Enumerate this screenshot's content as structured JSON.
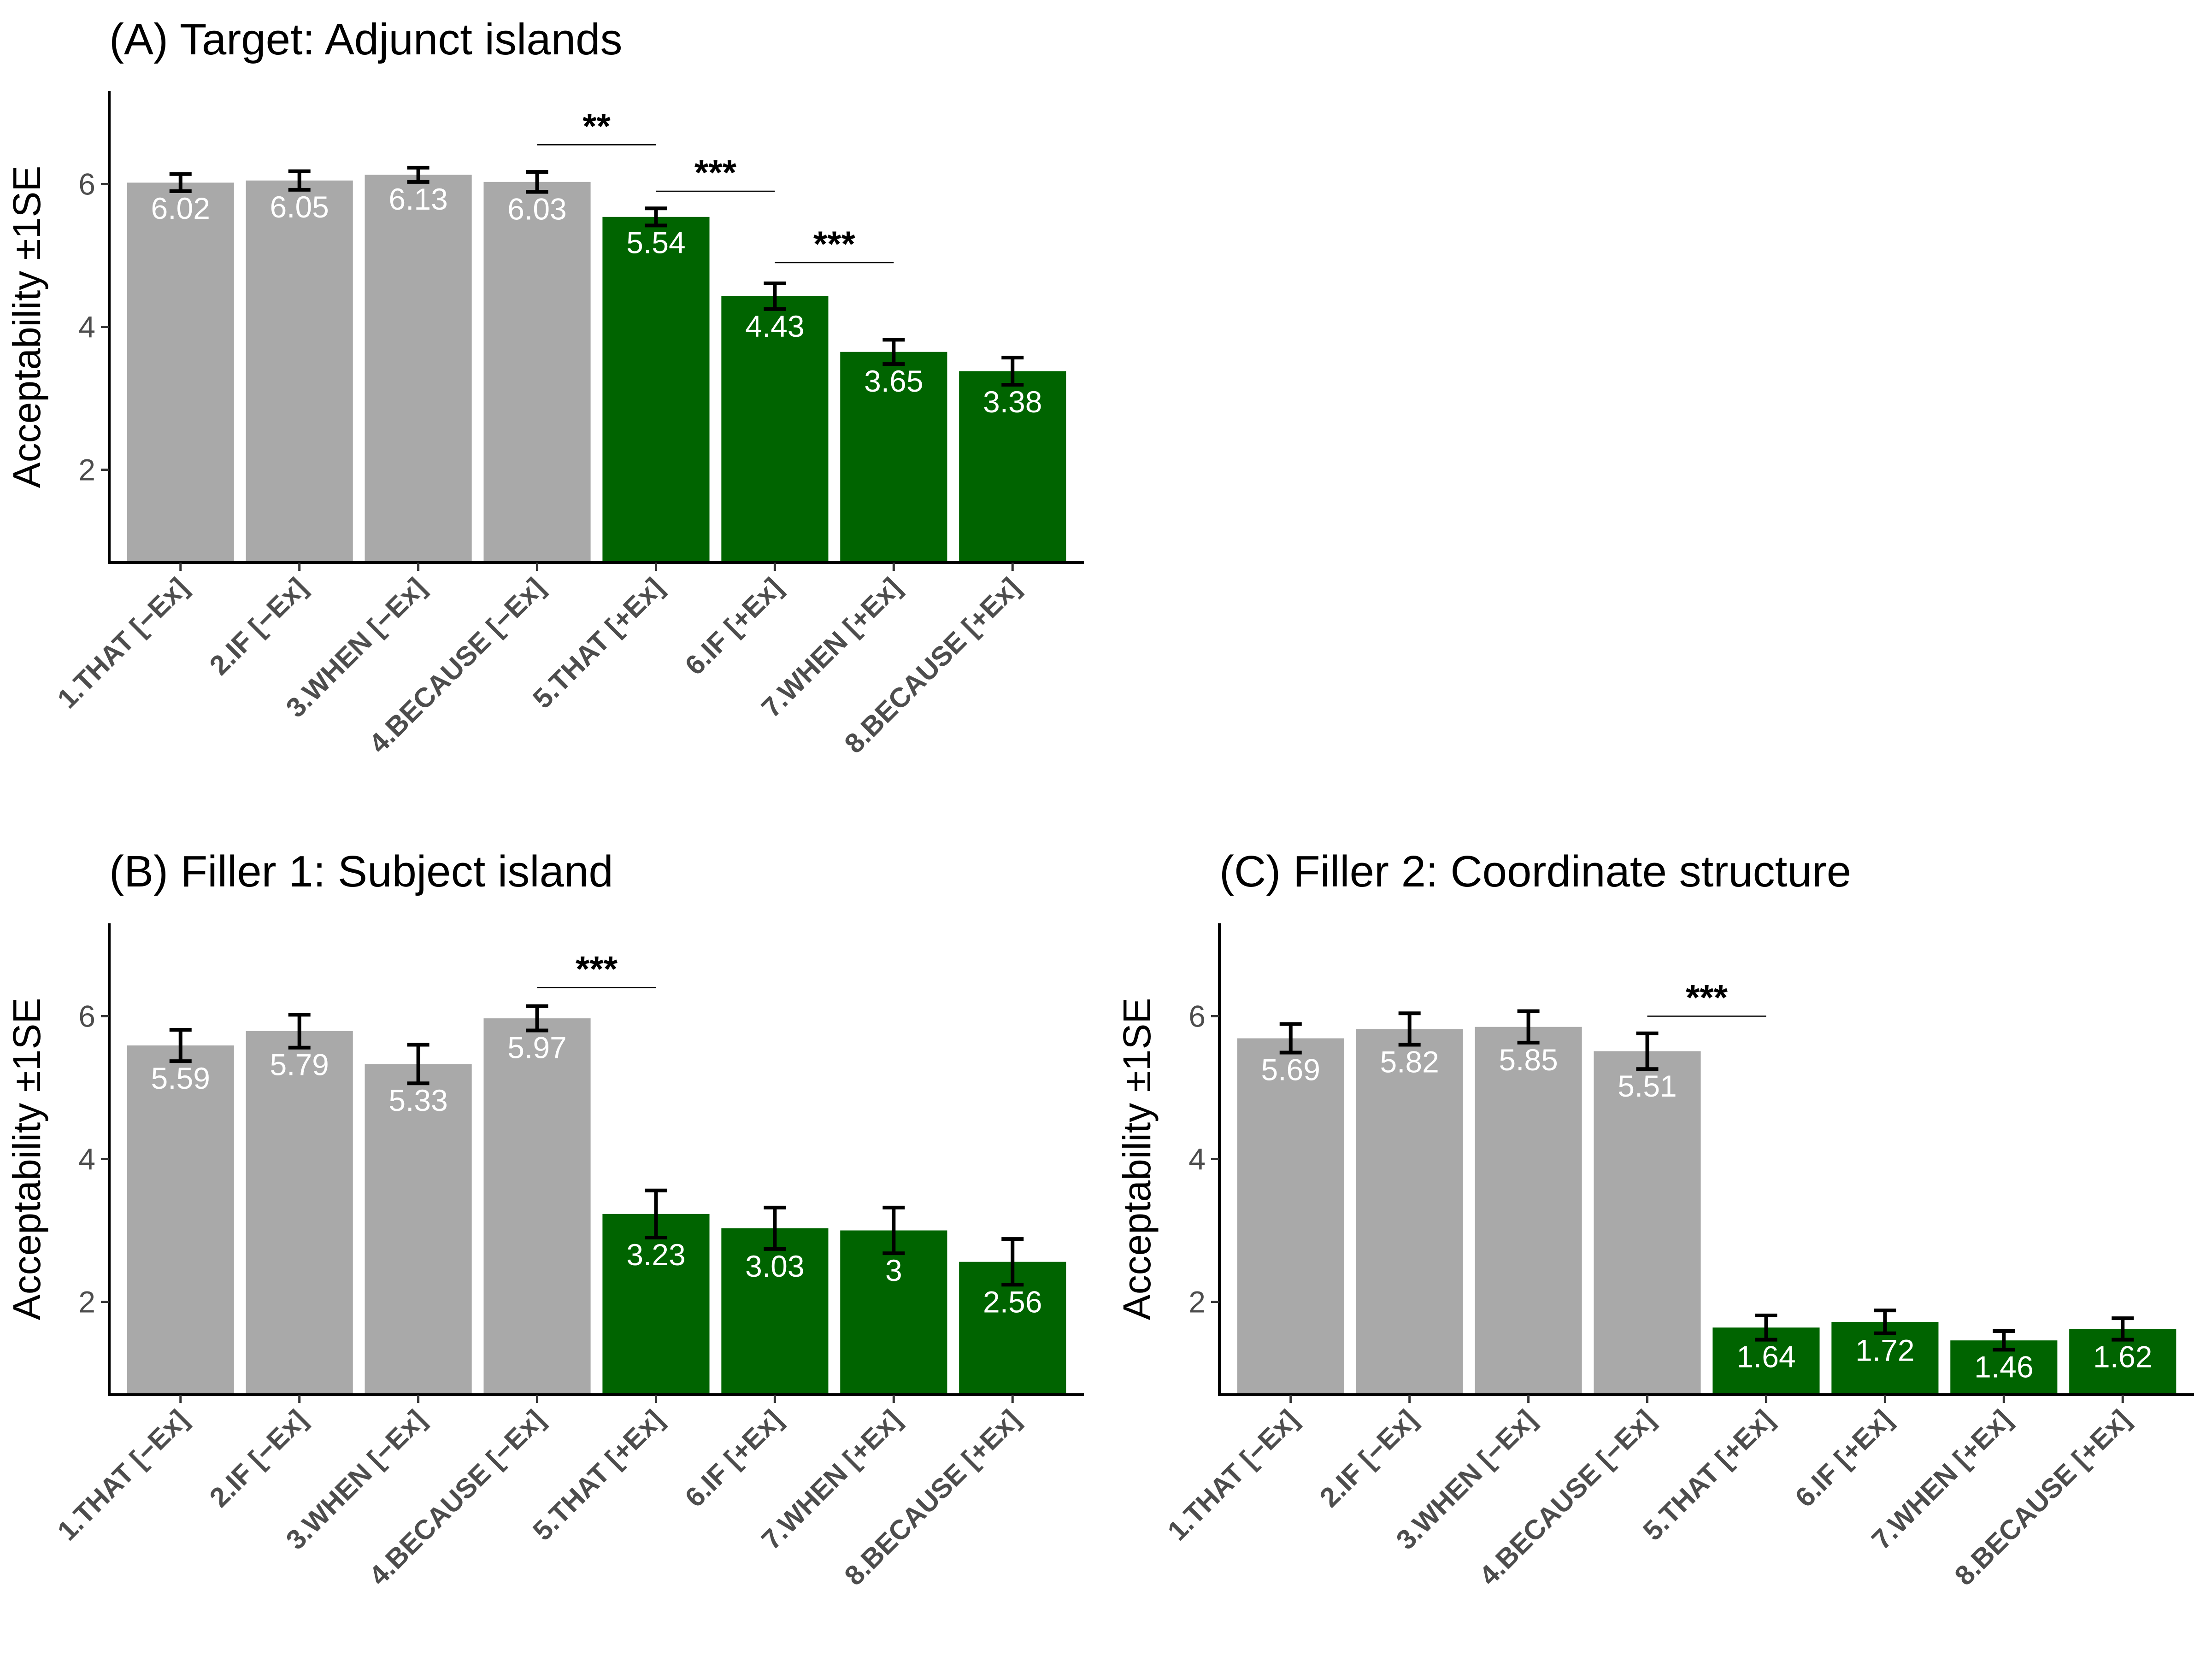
{
  "palette": {
    "grey": "#a9a9a9",
    "green": "#006400",
    "label_color": "#ffffff"
  },
  "chart_data": [
    {
      "id": "A",
      "type": "bar",
      "title": "(A) Target: Adjunct islands",
      "ylabel": "Acceptability ±1SE",
      "xlabel": "",
      "ylim": [
        0.7,
        7.3
      ],
      "yticks": [
        2,
        4,
        6
      ],
      "categories": [
        "1.THAT [−Ex]",
        "2.IF [−Ex]",
        "3.WHEN [−Ex]",
        "4.BECAUSE [−Ex]",
        "5.THAT [+Ex]",
        "6.IF [+Ex]",
        "7.WHEN [+Ex]",
        "8.BECAUSE [+Ex]"
      ],
      "values": [
        6.02,
        6.05,
        6.13,
        6.03,
        5.54,
        4.43,
        3.65,
        3.38
      ],
      "labels": [
        "6.02",
        "6.05",
        "6.13",
        "6.03",
        "5.54",
        "4.43",
        "3.65",
        "3.38"
      ],
      "se": [
        0.12,
        0.13,
        0.1,
        0.14,
        0.12,
        0.18,
        0.17,
        0.19
      ],
      "colors": [
        "grey",
        "grey",
        "grey",
        "grey",
        "green",
        "green",
        "green",
        "green"
      ],
      "significance": [
        {
          "from": 3,
          "to": 4,
          "y": 6.55,
          "label": "**"
        },
        {
          "from": 4,
          "to": 5,
          "y": 5.9,
          "label": "***"
        },
        {
          "from": 5,
          "to": 6,
          "y": 4.9,
          "label": "***"
        }
      ]
    },
    {
      "id": "B",
      "type": "bar",
      "title": "(B) Filler 1: Subject island",
      "ylabel": "Acceptability ±1SE",
      "xlabel": "",
      "ylim": [
        0.7,
        7.3
      ],
      "yticks": [
        2,
        4,
        6
      ],
      "categories": [
        "1.THAT [−Ex]",
        "2.IF [−Ex]",
        "3.WHEN [−Ex]",
        "4.BECAUSE [−Ex]",
        "5.THAT [+Ex]",
        "6.IF [+Ex]",
        "7.WHEN [+Ex]",
        "8.BECAUSE [+Ex]"
      ],
      "values": [
        5.59,
        5.79,
        5.33,
        5.97,
        3.23,
        3.03,
        3.0,
        2.56
      ],
      "labels": [
        "5.59",
        "5.79",
        "5.33",
        "5.97",
        "3.23",
        "3.03",
        "3",
        "2.56"
      ],
      "se": [
        0.22,
        0.23,
        0.27,
        0.17,
        0.33,
        0.29,
        0.32,
        0.32
      ],
      "colors": [
        "grey",
        "grey",
        "grey",
        "grey",
        "green",
        "green",
        "green",
        "green"
      ],
      "significance": [
        {
          "from": 3,
          "to": 4,
          "y": 6.4,
          "label": "***"
        }
      ]
    },
    {
      "id": "C",
      "type": "bar",
      "title": "(C) Filler 2: Coordinate structure",
      "ylabel": "Acceptability ±1SE",
      "xlabel": "",
      "ylim": [
        0.7,
        7.3
      ],
      "yticks": [
        2,
        4,
        6
      ],
      "categories": [
        "1.THAT [−Ex]",
        "2.IF [−Ex]",
        "3.WHEN [−Ex]",
        "4.BECAUSE [−Ex]",
        "5.THAT [+Ex]",
        "6.IF [+Ex]",
        "7.WHEN [+Ex]",
        "8.BECAUSE [+Ex]"
      ],
      "values": [
        5.69,
        5.82,
        5.85,
        5.51,
        1.64,
        1.72,
        1.46,
        1.62
      ],
      "labels": [
        "5.69",
        "5.82",
        "5.85",
        "5.51",
        "1.64",
        "1.72",
        "1.46",
        "1.62"
      ],
      "se": [
        0.2,
        0.22,
        0.22,
        0.25,
        0.17,
        0.16,
        0.13,
        0.15
      ],
      "colors": [
        "grey",
        "grey",
        "grey",
        "grey",
        "green",
        "green",
        "green",
        "green"
      ],
      "significance": [
        {
          "from": 3,
          "to": 4,
          "y": 6.0,
          "label": "***"
        }
      ]
    }
  ]
}
